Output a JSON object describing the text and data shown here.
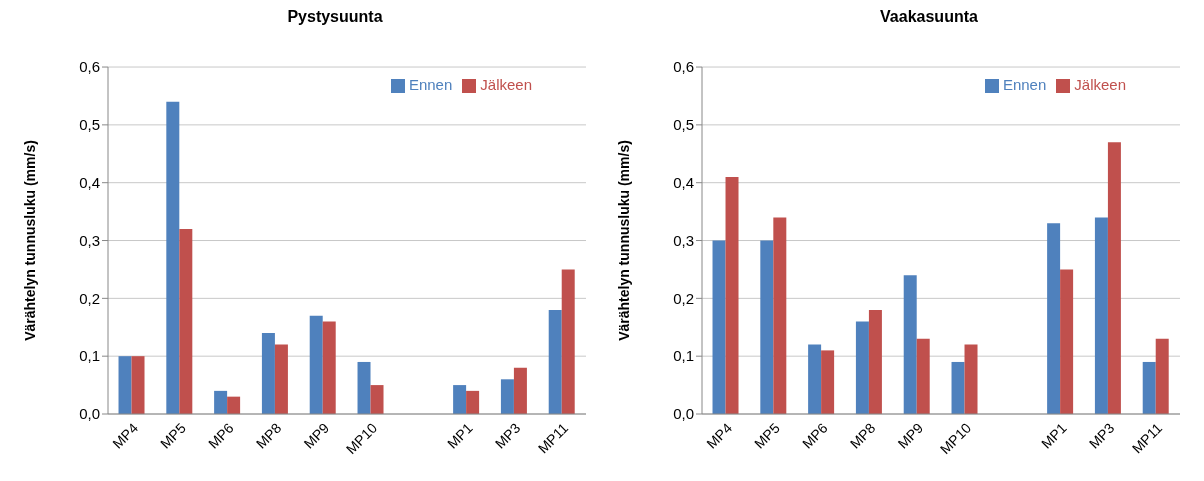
{
  "chart_data": [
    {
      "type": "bar",
      "title": "Pystysuunta",
      "ylabel": "Värähtelyn tunnusluku (mm/s)",
      "categories": [
        "MP4",
        "MP5",
        "MP6",
        "MP8",
        "MP9",
        "MP10",
        null,
        "MP1",
        "MP3",
        "MP11"
      ],
      "series": [
        {
          "name": "Ennen",
          "color": "#4f81bd",
          "values": [
            0.1,
            0.54,
            0.04,
            0.14,
            0.17,
            0.09,
            null,
            0.05,
            0.06,
            0.18
          ]
        },
        {
          "name": "Jälkeen",
          "color": "#c0504d",
          "values": [
            0.1,
            0.32,
            0.03,
            0.12,
            0.16,
            0.05,
            null,
            0.04,
            0.08,
            0.25
          ]
        }
      ],
      "ylim": [
        0,
        0.6
      ],
      "yticks": [
        {
          "value": 0,
          "label": "0,0"
        },
        {
          "value": 0.1,
          "label": "0,1"
        },
        {
          "value": 0.2,
          "label": "0,2"
        },
        {
          "value": 0.3,
          "label": "0,3"
        },
        {
          "value": 0.4,
          "label": "0,4"
        },
        {
          "value": 0.5,
          "label": "0,5"
        },
        {
          "value": 0.6,
          "label": "0,6"
        }
      ],
      "grid": "y",
      "legend": "top right"
    },
    {
      "type": "bar",
      "title": "Vaakasuunta",
      "ylabel": "Värähtelyn tunnusluku (mm/s)",
      "categories": [
        "MP4",
        "MP5",
        "MP6",
        "MP8",
        "MP9",
        "MP10",
        null,
        "MP1",
        "MP3",
        "MP11"
      ],
      "series": [
        {
          "name": "Ennen",
          "color": "#4f81bd",
          "values": [
            0.3,
            0.3,
            0.12,
            0.16,
            0.24,
            0.09,
            null,
            0.33,
            0.34,
            0.09
          ]
        },
        {
          "name": "Jälkeen",
          "color": "#c0504d",
          "values": [
            0.41,
            0.34,
            0.11,
            0.18,
            0.13,
            0.12,
            null,
            0.25,
            0.47,
            0.13
          ]
        }
      ],
      "ylim": [
        0,
        0.6
      ],
      "yticks": [
        {
          "value": 0,
          "label": "0,0"
        },
        {
          "value": 0.1,
          "label": "0,1"
        },
        {
          "value": 0.2,
          "label": "0,2"
        },
        {
          "value": 0.3,
          "label": "0,3"
        },
        {
          "value": 0.4,
          "label": "0,4"
        },
        {
          "value": 0.5,
          "label": "0,5"
        },
        {
          "value": 0.6,
          "label": "0,6"
        }
      ],
      "grid": "y",
      "legend": "top right"
    }
  ]
}
